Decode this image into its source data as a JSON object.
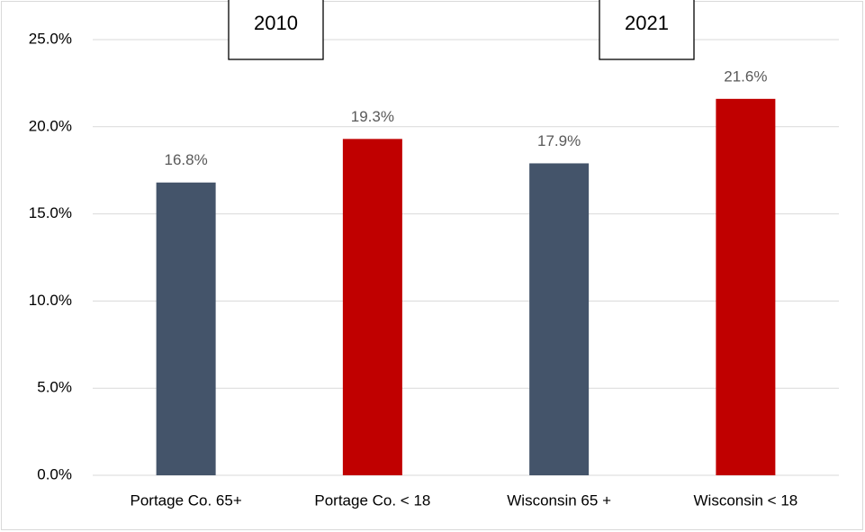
{
  "chart_data": {
    "type": "bar",
    "categories": [
      "Portage Co. 65+",
      "Portage Co. < 18",
      "Wisconsin 65 +",
      "Wisconsin < 18"
    ],
    "values": [
      16.8,
      19.3,
      17.9,
      21.6
    ],
    "value_labels": [
      "16.8%",
      "19.3%",
      "17.9%",
      "21.6%"
    ],
    "colors": [
      "#44546a",
      "#c00000",
      "#44546a",
      "#c00000"
    ],
    "annotations": [
      "2010",
      "2021"
    ],
    "ylim": [
      0,
      25
    ],
    "yticks": [
      {
        "value": 0,
        "label": "0.0%"
      },
      {
        "value": 5,
        "label": "5.0%"
      },
      {
        "value": 10,
        "label": "10.0%"
      },
      {
        "value": 15,
        "label": "15.0%"
      },
      {
        "value": 20,
        "label": "20.0%"
      },
      {
        "value": 25,
        "label": "25.0%"
      }
    ],
    "grid": true
  }
}
